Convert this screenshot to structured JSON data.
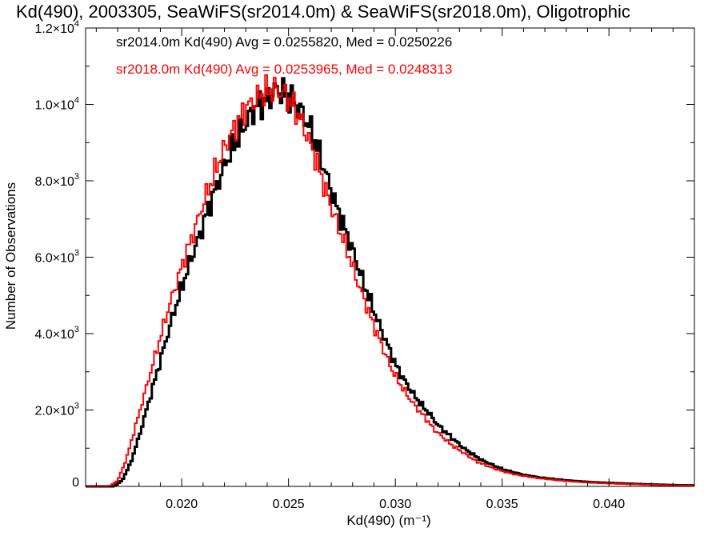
{
  "chart_data": {
    "type": "histogram",
    "title": "Kd(490), 2003305, SeaWiFS(sr2014.0m) & SeaWiFS(sr2018.0m), Oligotrophic",
    "xlabel": "Kd(490) (m⁻¹)",
    "ylabel": "Number of Observations",
    "xlim": [
      0.0155,
      0.044
    ],
    "ylim": [
      0,
      12000
    ],
    "x_ticks": [
      0.02,
      0.025,
      0.03,
      0.035,
      0.04
    ],
    "x_tick_labels": [
      "0.020",
      "0.025",
      "0.030",
      "0.035",
      "0.040"
    ],
    "y_ticks": [
      0,
      2000,
      4000,
      6000,
      8000,
      10000,
      12000
    ],
    "y_tick_labels": [
      {
        "mant": "0",
        "exp": ""
      },
      {
        "mant": "2.0×10",
        "exp": "3"
      },
      {
        "mant": "4.0×10",
        "exp": "3"
      },
      {
        "mant": "6.0×10",
        "exp": "3"
      },
      {
        "mant": "8.0×10",
        "exp": "3"
      },
      {
        "mant": "1.0×10",
        "exp": "4"
      },
      {
        "mant": "1.2×10",
        "exp": "4"
      }
    ],
    "grid": false,
    "legend_position": "top-left",
    "series": [
      {
        "name": "sr2014.0m",
        "color": "#000000",
        "legend_text": "sr2014.0m Kd(490) Avg = 0.0255820, Med = 0.0250226",
        "stats": {
          "avg": 0.025582,
          "median": 0.0250226
        },
        "points": [
          [
            0.016,
            0
          ],
          [
            0.0168,
            0
          ],
          [
            0.0172,
            150
          ],
          [
            0.0176,
            600
          ],
          [
            0.018,
            1300
          ],
          [
            0.0184,
            2100
          ],
          [
            0.0188,
            2900
          ],
          [
            0.0192,
            3700
          ],
          [
            0.0196,
            4500
          ],
          [
            0.02,
            5200
          ],
          [
            0.0204,
            5900
          ],
          [
            0.0208,
            6500
          ],
          [
            0.0212,
            7200
          ],
          [
            0.0216,
            7800
          ],
          [
            0.022,
            8400
          ],
          [
            0.0224,
            8900
          ],
          [
            0.0228,
            9300
          ],
          [
            0.0232,
            9700
          ],
          [
            0.0236,
            10000
          ],
          [
            0.024,
            10100
          ],
          [
            0.0244,
            10400
          ],
          [
            0.0248,
            10300
          ],
          [
            0.0252,
            10100
          ],
          [
            0.0256,
            9800
          ],
          [
            0.026,
            9400
          ],
          [
            0.0264,
            8800
          ],
          [
            0.0268,
            8100
          ],
          [
            0.0272,
            7400
          ],
          [
            0.0276,
            6800
          ],
          [
            0.028,
            6200
          ],
          [
            0.0284,
            5500
          ],
          [
            0.0288,
            4900
          ],
          [
            0.0292,
            4300
          ],
          [
            0.0296,
            3750
          ],
          [
            0.03,
            3200
          ],
          [
            0.0304,
            2800
          ],
          [
            0.0308,
            2450
          ],
          [
            0.0312,
            2150
          ],
          [
            0.0316,
            1900
          ],
          [
            0.032,
            1600
          ],
          [
            0.0324,
            1400
          ],
          [
            0.0328,
            1200
          ],
          [
            0.0332,
            1000
          ],
          [
            0.0336,
            850
          ],
          [
            0.034,
            700
          ],
          [
            0.0344,
            600
          ],
          [
            0.0348,
            500
          ],
          [
            0.0352,
            420
          ],
          [
            0.0356,
            360
          ],
          [
            0.036,
            300
          ],
          [
            0.0368,
            230
          ],
          [
            0.0376,
            180
          ],
          [
            0.0384,
            140
          ],
          [
            0.0392,
            110
          ],
          [
            0.04,
            90
          ],
          [
            0.041,
            70
          ],
          [
            0.042,
            50
          ],
          [
            0.043,
            35
          ],
          [
            0.044,
            25
          ]
        ]
      },
      {
        "name": "sr2018.0m",
        "color": "#ff0000",
        "legend_text": "sr2018.0m Kd(490) Avg = 0.0253965, Med = 0.0248313",
        "stats": {
          "avg": 0.0253965,
          "median": 0.0248313
        },
        "points": [
          [
            0.016,
            0
          ],
          [
            0.0166,
            0
          ],
          [
            0.017,
            150
          ],
          [
            0.0174,
            700
          ],
          [
            0.0178,
            1500
          ],
          [
            0.0182,
            2300
          ],
          [
            0.0186,
            3100
          ],
          [
            0.019,
            3900
          ],
          [
            0.0194,
            4700
          ],
          [
            0.0198,
            5400
          ],
          [
            0.0202,
            6100
          ],
          [
            0.0206,
            6700
          ],
          [
            0.021,
            7400
          ],
          [
            0.0214,
            8000
          ],
          [
            0.0218,
            8600
          ],
          [
            0.0222,
            9100
          ],
          [
            0.0226,
            9500
          ],
          [
            0.023,
            9900
          ],
          [
            0.0234,
            10100
          ],
          [
            0.0238,
            10300
          ],
          [
            0.0242,
            10400
          ],
          [
            0.0246,
            10350
          ],
          [
            0.025,
            10150
          ],
          [
            0.0254,
            9800
          ],
          [
            0.0258,
            9300
          ],
          [
            0.0262,
            8700
          ],
          [
            0.0266,
            8000
          ],
          [
            0.027,
            7300
          ],
          [
            0.0274,
            6700
          ],
          [
            0.0278,
            6100
          ],
          [
            0.0282,
            5400
          ],
          [
            0.0286,
            4800
          ],
          [
            0.029,
            4200
          ],
          [
            0.0294,
            3650
          ],
          [
            0.0298,
            3100
          ],
          [
            0.0302,
            2700
          ],
          [
            0.0306,
            2350
          ],
          [
            0.031,
            2050
          ],
          [
            0.0314,
            1800
          ],
          [
            0.0318,
            1500
          ],
          [
            0.0322,
            1300
          ],
          [
            0.0326,
            1100
          ],
          [
            0.033,
            950
          ],
          [
            0.0334,
            800
          ],
          [
            0.0338,
            650
          ],
          [
            0.0342,
            560
          ],
          [
            0.0346,
            470
          ],
          [
            0.035,
            400
          ],
          [
            0.0354,
            340
          ],
          [
            0.0358,
            290
          ],
          [
            0.0366,
            220
          ],
          [
            0.0374,
            170
          ],
          [
            0.0382,
            130
          ],
          [
            0.039,
            100
          ],
          [
            0.0398,
            80
          ],
          [
            0.0408,
            60
          ],
          [
            0.0418,
            45
          ],
          [
            0.0428,
            30
          ],
          [
            0.044,
            20
          ]
        ]
      }
    ]
  }
}
